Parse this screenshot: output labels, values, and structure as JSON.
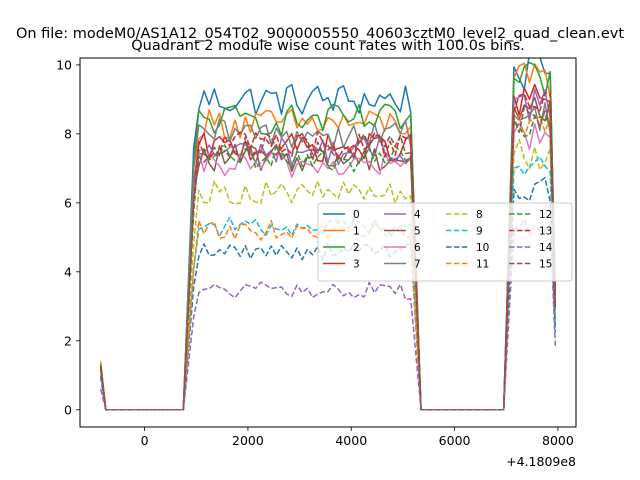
{
  "figure": {
    "suptitle": "On file: modeM0/AS1A12_054T02_9000005550_40603cztM0_level2_quad_clean.evt",
    "title": "Quadrant 2 module wise count rates with 100.0s bins.",
    "offset_label": "+4.1809e8"
  },
  "chart_data": {
    "type": "line",
    "title": "Quadrant 2 module wise count rates with 100.0s bins.",
    "xlabel": "",
    "ylabel": "",
    "xlim": [
      -1250,
      8350
    ],
    "ylim": [
      -0.5,
      10.2
    ],
    "x_offset": 418090000,
    "x_ticks": [
      0,
      2000,
      4000,
      6000,
      8000
    ],
    "y_ticks": [
      0,
      2,
      4,
      6,
      8,
      10
    ],
    "grid": false,
    "legend": {
      "placement": "center-right",
      "columns": 4
    },
    "bin_seconds": 100,
    "series": [
      {
        "name": "0",
        "color": "#1f77b4",
        "dash": "solid",
        "levels": [
          1.35,
          9.0,
          9.8
        ]
      },
      {
        "name": "1",
        "color": "#ff7f0e",
        "dash": "solid",
        "levels": [
          1.3,
          8.3,
          9.5
        ]
      },
      {
        "name": "2",
        "color": "#2ca02c",
        "dash": "solid",
        "levels": [
          1.3,
          8.4,
          9.5
        ]
      },
      {
        "name": "3",
        "color": "#d62728",
        "dash": "solid",
        "levels": [
          1.25,
          7.6,
          9.0
        ]
      },
      {
        "name": "4",
        "color": "#9467bd",
        "dash": "solid",
        "levels": [
          1.25,
          7.5,
          8.9
        ]
      },
      {
        "name": "5",
        "color": "#8c564b",
        "dash": "solid",
        "levels": [
          1.2,
          7.3,
          8.7
        ]
      },
      {
        "name": "6",
        "color": "#e377c2",
        "dash": "solid",
        "levels": [
          1.2,
          7.1,
          8.0
        ]
      },
      {
        "name": "7",
        "color": "#7f7f7f",
        "dash": "solid",
        "levels": [
          1.2,
          8.0,
          8.5
        ]
      },
      {
        "name": "8",
        "color": "#bcbd22",
        "dash": "dashed",
        "levels": [
          1.1,
          6.3,
          7.4
        ]
      },
      {
        "name": "9",
        "color": "#17becf",
        "dash": "dashed",
        "levels": [
          1.0,
          5.3,
          7.0
        ]
      },
      {
        "name": "10",
        "color": "#1f77b4",
        "dash": "dashed",
        "levels": [
          0.95,
          4.6,
          6.4
        ]
      },
      {
        "name": "11",
        "color": "#ff7f0e",
        "dash": "dashed",
        "levels": [
          1.4,
          5.2,
          8.3
        ]
      },
      {
        "name": "12",
        "color": "#2ca02c",
        "dash": "dashed",
        "levels": [
          1.3,
          7.3,
          8.4
        ]
      },
      {
        "name": "13",
        "color": "#d62728",
        "dash": "dashed",
        "levels": [
          1.25,
          7.7,
          8.7
        ]
      },
      {
        "name": "14",
        "color": "#9467bd",
        "dash": "dashed",
        "levels": [
          0.6,
          3.45,
          5.3
        ]
      },
      {
        "name": "15",
        "color": "#8c564b",
        "dash": "dashed",
        "levels": [
          1.2,
          7.6,
          8.5
        ]
      }
    ],
    "segments": {
      "first_bin_x": -850,
      "drop_to_zero_x": -750,
      "gap1_end_x": 750,
      "orbit1_start_x": 950,
      "orbit1_end_x": 5150,
      "gap2_start_x": 5350,
      "gap2_end_x": 6950,
      "orbit2_start_x": 7150,
      "orbit2_end_x": 7850,
      "last_bin_x": 7950
    }
  }
}
